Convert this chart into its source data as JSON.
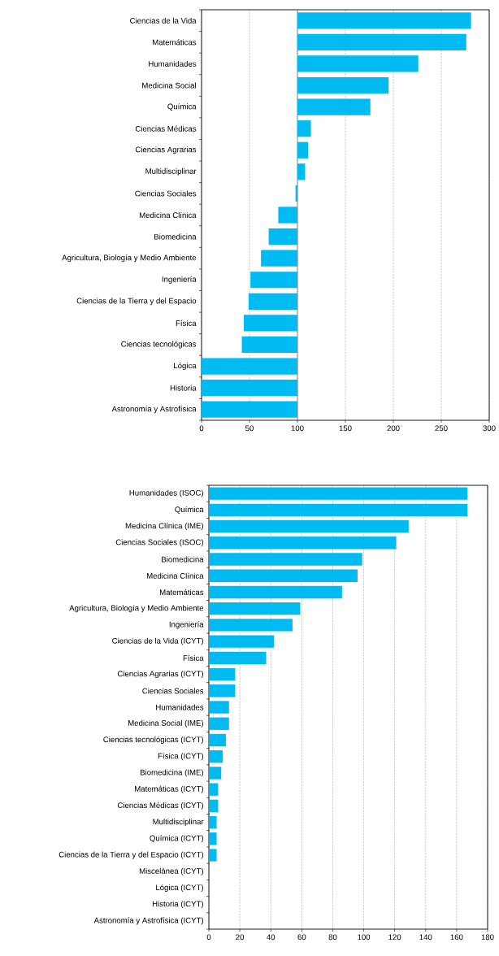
{
  "chart_data": [
    {
      "type": "bar",
      "orientation": "horizontal",
      "color": "#00bbf2",
      "grid": "x",
      "xlim": [
        0,
        300
      ],
      "xticks": [
        0,
        50,
        100,
        150,
        200,
        250,
        300
      ],
      "categories": [
        "Ciencias de la Vida",
        "Matemáticas",
        "Humanidades",
        "Medicina Social",
        "Química",
        "Ciencias Médicas",
        "Ciencias Agrarias",
        "Multidisciplinar",
        "Ciencias Sociales",
        "Medicina Clínica",
        "Biomedicina",
        "Agricultura, Biología y Medio Ambiente",
        "Ingeniería",
        "Ciencias de la Tierra y del Espacio",
        "Física",
        "Ciencias tecnológicas",
        "Lógica",
        "Historia",
        "Astronomía y Astrofísica"
      ],
      "base": [
        100,
        100,
        100,
        100,
        100,
        100,
        100,
        100,
        100,
        100,
        100,
        100,
        100,
        100,
        100,
        100,
        100,
        100,
        100
      ],
      "values": [
        181,
        176,
        126,
        95,
        76,
        14,
        11,
        8,
        -2,
        -20,
        -30,
        -38,
        -49,
        -51,
        -56,
        -58,
        -100,
        -100,
        -100
      ],
      "ref_lines": [
        {
          "axis": "x",
          "value": 100,
          "color": "#8c8c8c"
        }
      ]
    },
    {
      "type": "bar",
      "orientation": "horizontal",
      "color": "#00bbf2",
      "grid": "x",
      "xlim": [
        0,
        180
      ],
      "xticks": [
        0,
        20,
        40,
        60,
        80,
        100,
        120,
        140,
        160,
        180
      ],
      "categories": [
        "Humanidades (ISOC)",
        "Química",
        "Medicina Clínica (IME)",
        "Ciencias Sociales (ISOC)",
        "Biomedicina",
        "Medicina Clínica",
        "Matemáticas",
        "Agricultura, Biología y Medio Ambiente",
        "Ingeniería",
        "Ciencias de la Vida (ICYT)",
        "Física",
        "Ciencias Agrarias (ICYT)",
        "Ciencias Sociales",
        "Humanidades",
        "Medicina Social (IME)",
        "Ciencias tecnológicas (ICYT)",
        "Física (ICYT)",
        "Biomedicina (IME)",
        "Matemáticas (ICYT)",
        "Ciencias Médicas (ICYT)",
        "Multidisciplinar",
        "Química (ICYT)",
        "Ciencias de la Tierra y del Espacio (ICYT)",
        "Miscelánea (ICYT)",
        "Lógica (ICYT)",
        "Historia (ICYT)",
        "Astronomía y Astrofísica (ICYT)"
      ],
      "values": [
        167,
        167,
        129,
        121,
        99,
        96,
        86,
        59,
        54,
        42,
        37,
        17,
        17,
        13,
        13,
        11,
        9,
        8,
        6,
        6,
        5,
        5,
        5,
        0,
        0,
        0,
        0
      ]
    }
  ]
}
